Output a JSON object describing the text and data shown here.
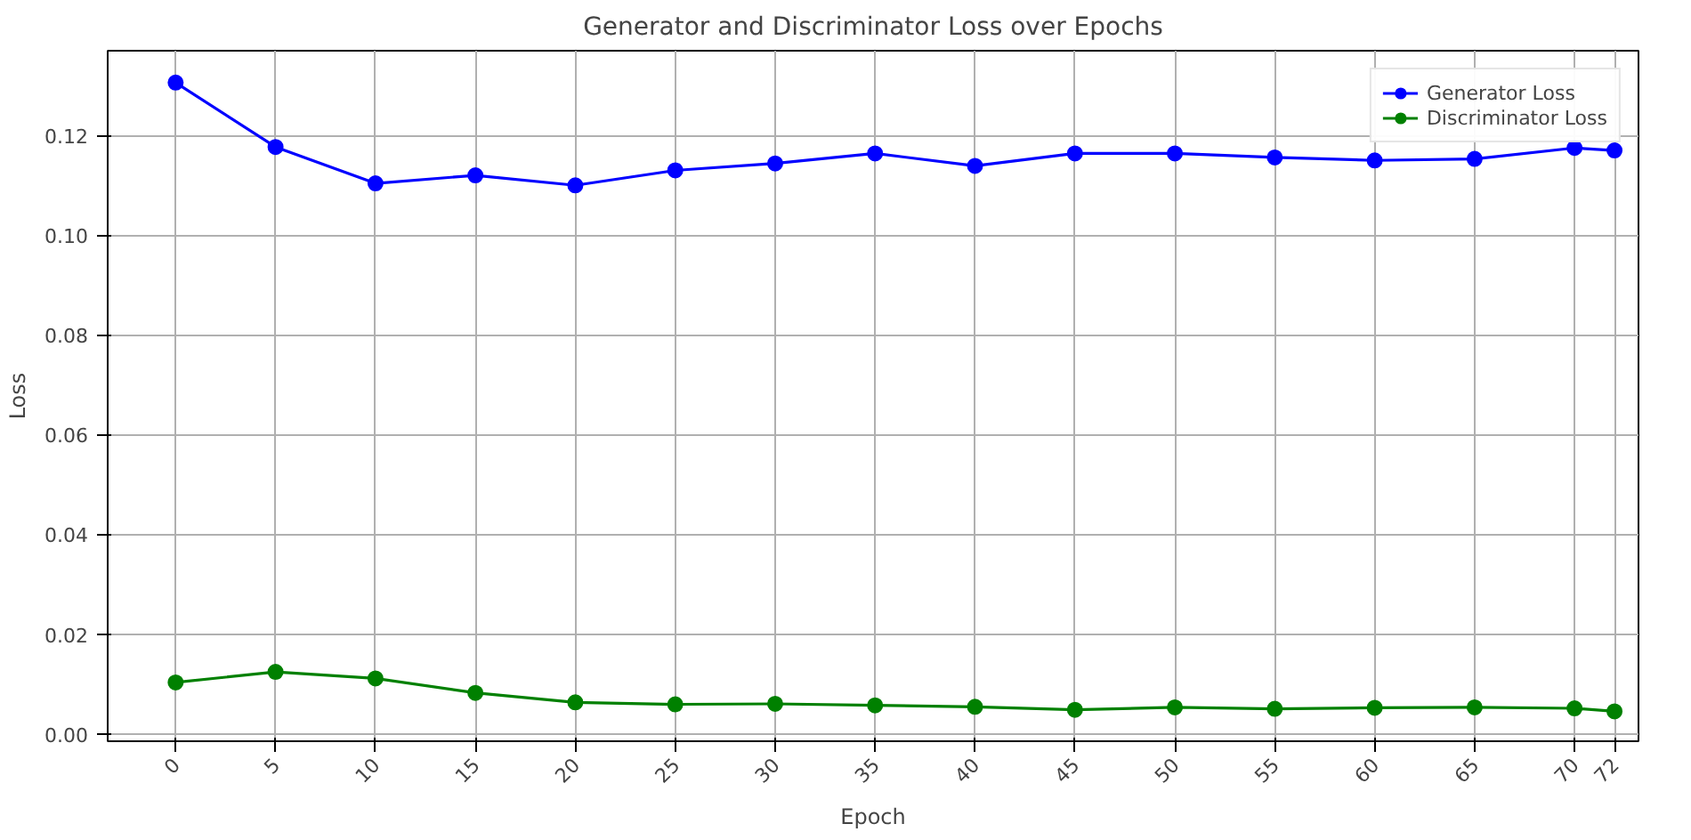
{
  "chart_data": {
    "type": "line",
    "title": "Generator and Discriminator Loss over Epochs",
    "xlabel": "Epoch",
    "ylabel": "Loss",
    "x": [
      0,
      5,
      10,
      15,
      20,
      25,
      30,
      35,
      40,
      45,
      50,
      55,
      60,
      65,
      70,
      72
    ],
    "series": [
      {
        "name": "Generator Loss",
        "color": "#0000ff",
        "values": [
          0.1306,
          0.1177,
          0.1104,
          0.112,
          0.11,
          0.113,
          0.1144,
          0.1164,
          0.1139,
          0.1164,
          0.1164,
          0.1156,
          0.115,
          0.1153,
          0.1175,
          0.117
        ]
      },
      {
        "name": "Discriminator Loss",
        "color": "#008000",
        "values": [
          0.0103,
          0.0124,
          0.0111,
          0.0082,
          0.0063,
          0.0059,
          0.006,
          0.0057,
          0.0054,
          0.0048,
          0.0053,
          0.005,
          0.0052,
          0.0053,
          0.0051,
          0.0045
        ]
      }
    ],
    "xlim": [
      -3.4,
      73.2
    ],
    "ylim": [
      -0.0015,
      0.137
    ],
    "xticks": [
      0,
      5,
      10,
      15,
      20,
      25,
      30,
      35,
      40,
      45,
      50,
      55,
      60,
      65,
      70,
      72
    ],
    "yticks": [
      {
        "value": 0,
        "label": "0.00"
      },
      {
        "value": 0.02,
        "label": "0.02"
      },
      {
        "value": 0.04,
        "label": "0.04"
      },
      {
        "value": 0.06,
        "label": "0.06"
      },
      {
        "value": 0.08,
        "label": "0.08"
      },
      {
        "value": 0.1,
        "label": "0.10"
      },
      {
        "value": 0.12,
        "label": "0.12"
      }
    ],
    "grid": true,
    "legend": "top right",
    "marker": "circle",
    "line_style": "solid"
  }
}
